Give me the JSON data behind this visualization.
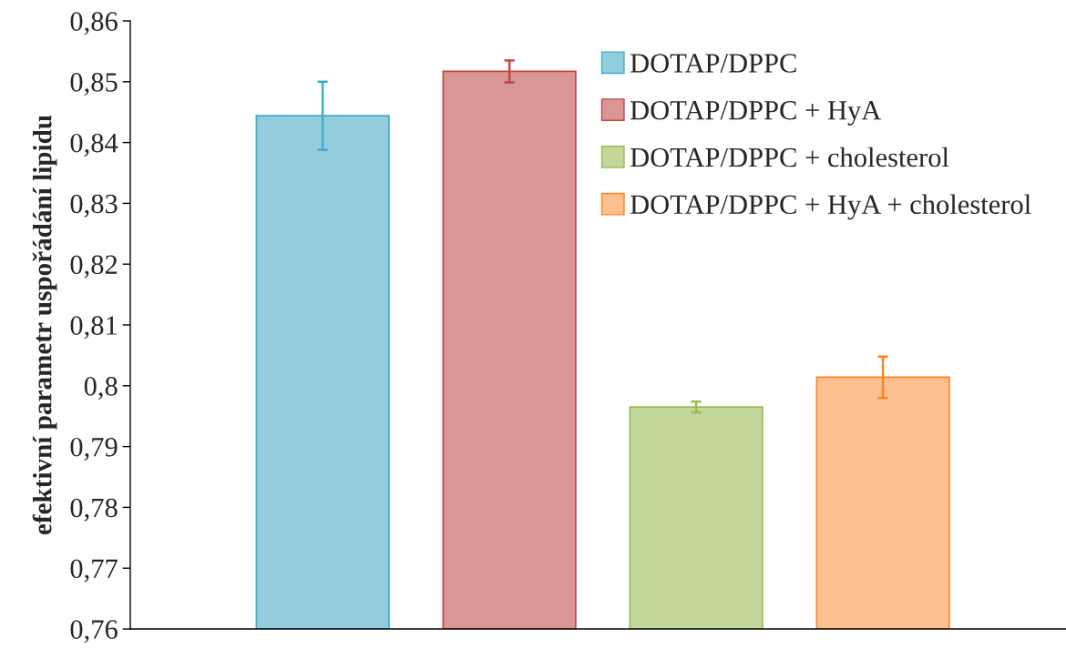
{
  "chart_data": {
    "type": "bar",
    "ylabel": "efektivní parametr uspořádání lipidu",
    "categories": [
      null,
      null,
      null,
      null
    ],
    "series": [
      {
        "name": "DOTAP/DPPC",
        "color": "#93cddd",
        "values": [
          0.8444,
          null,
          null,
          null
        ],
        "errors": [
          0.0056,
          null,
          null,
          null
        ]
      },
      {
        "name": "DOTAP/DPPC + HyA",
        "color": "#d99694",
        "values": [
          null,
          0.8517,
          null,
          null
        ],
        "errors": [
          null,
          0.0018,
          null,
          null
        ]
      },
      {
        "name": "DOTAP/DPPC + cholesterol",
        "color": "#c3d69b",
        "values": [
          null,
          null,
          0.7965,
          null
        ],
        "errors": [
          null,
          null,
          0.0009,
          null
        ]
      },
      {
        "name": "DOTAP/DPPC + HyA + cholesterol",
        "color": "#fac090",
        "values": [
          null,
          null,
          null,
          0.8014
        ],
        "errors": [
          null,
          null,
          null,
          0.0034
        ]
      }
    ],
    "ylim": [
      0.76,
      0.86
    ],
    "yticks": [
      {
        "value": 0.76,
        "label": "0,76"
      },
      {
        "value": 0.77,
        "label": "0,77"
      },
      {
        "value": 0.78,
        "label": "0,78"
      },
      {
        "value": 0.79,
        "label": "0,79"
      },
      {
        "value": 0.8,
        "label": "0,8"
      },
      {
        "value": 0.81,
        "label": "0,81"
      },
      {
        "value": 0.82,
        "label": "0,82"
      },
      {
        "value": 0.83,
        "label": "0,83"
      },
      {
        "value": 0.84,
        "label": "0,84"
      },
      {
        "value": 0.85,
        "label": "0,85"
      },
      {
        "value": 0.86,
        "label": "0,86"
      }
    ],
    "legend": "top right",
    "grid": false
  }
}
